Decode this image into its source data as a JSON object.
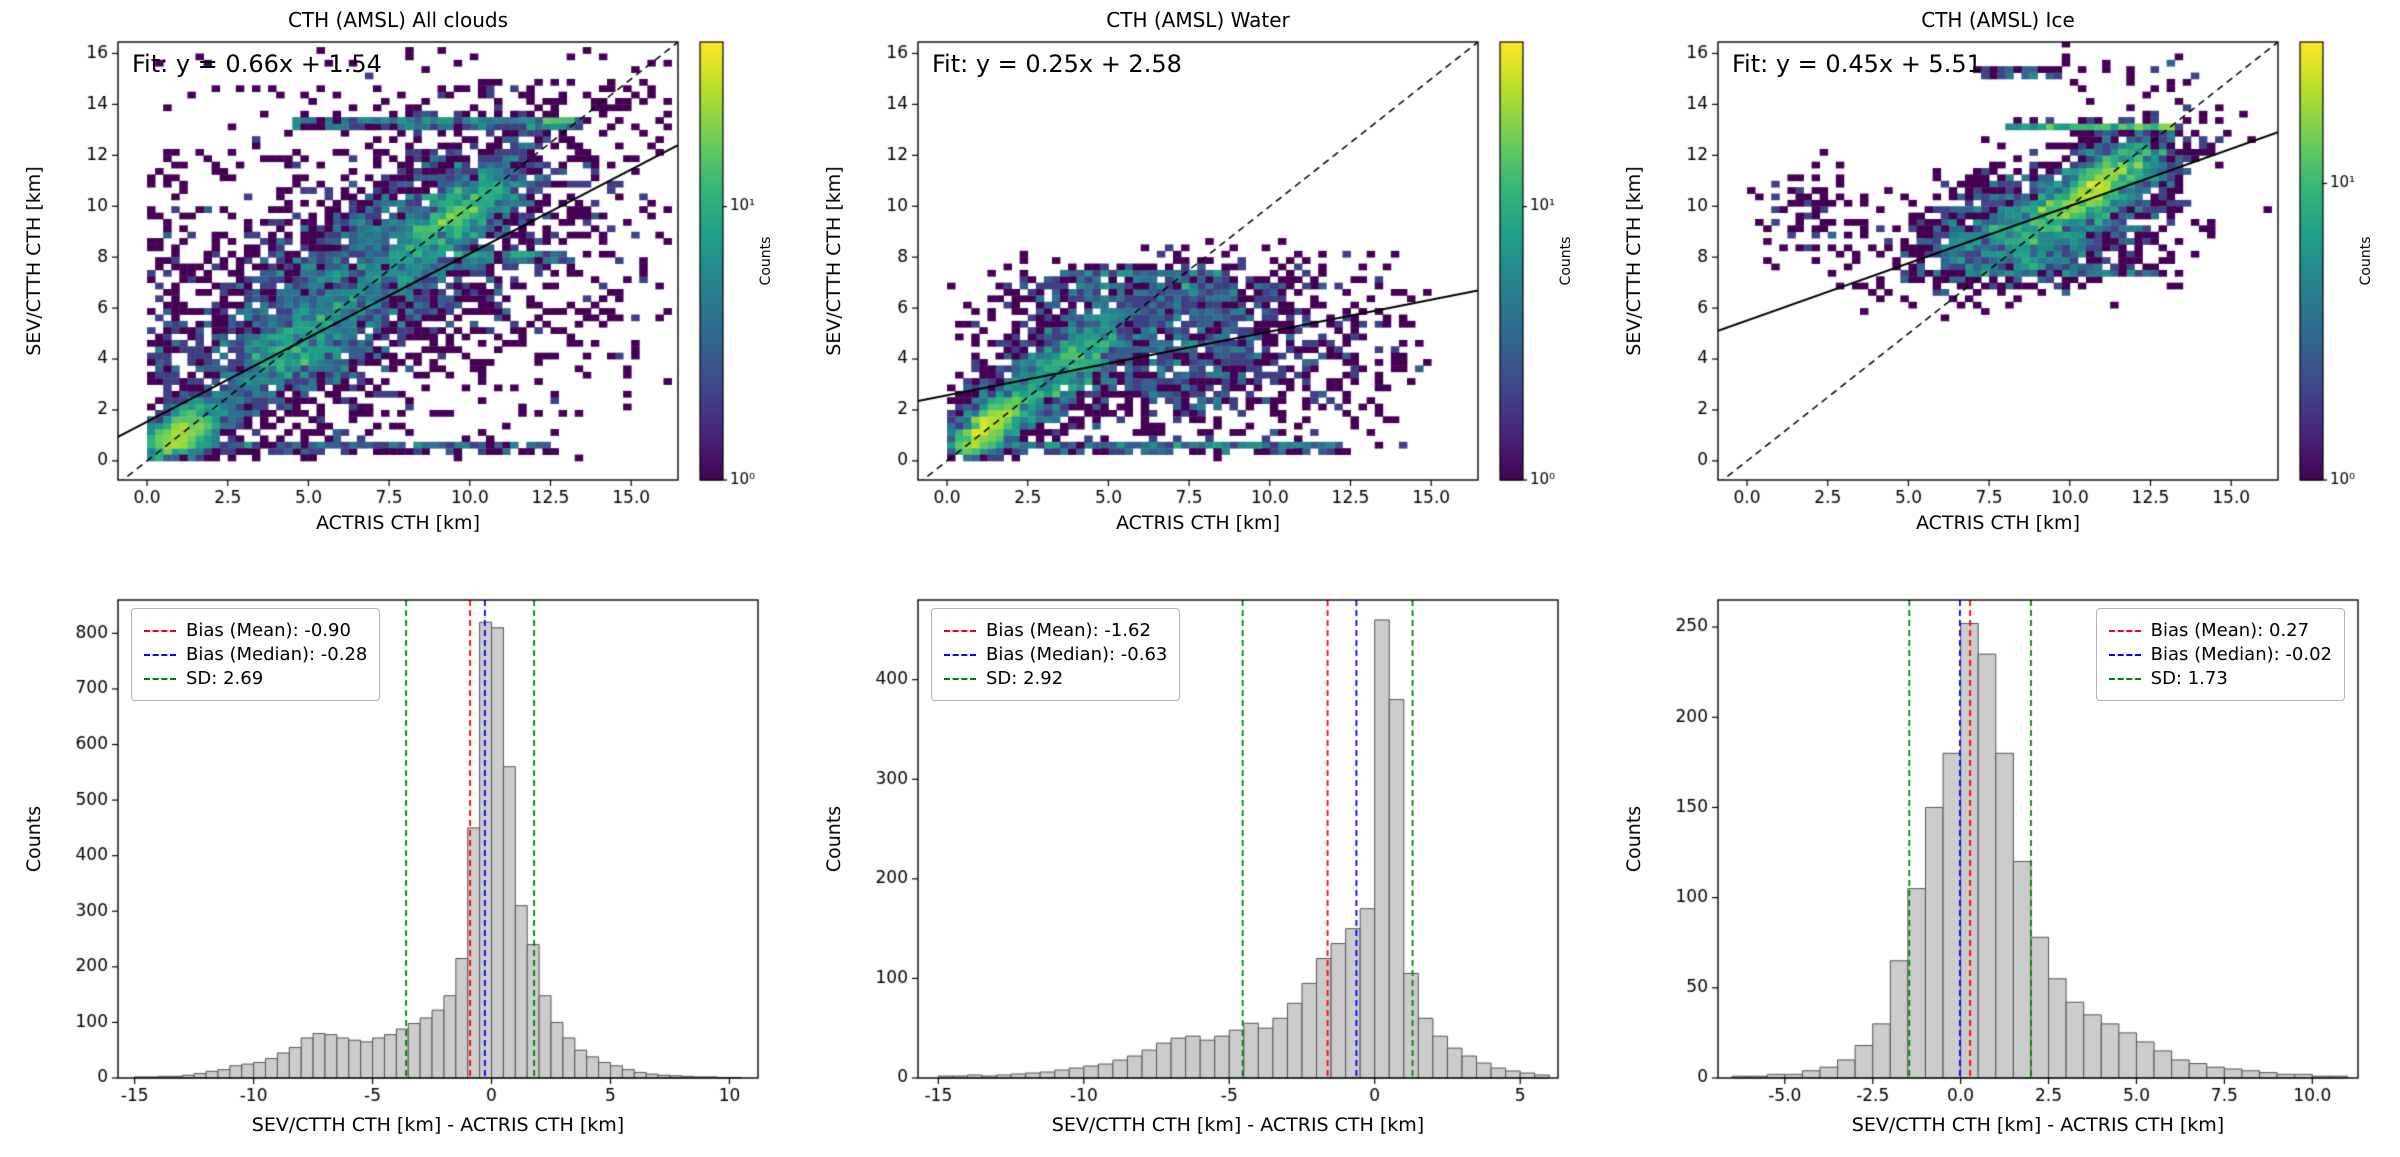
{
  "figure": {
    "background": "#ffffff"
  },
  "colors": {
    "mean_line": "#ff0000",
    "median_line": "#0000ff",
    "sd_line": "#008000",
    "fit_line": "#000000",
    "identity_line": "#000000",
    "hist_fill": "#cccccc",
    "hist_edge": "#555555",
    "axis": "#000000"
  },
  "chart_data": [
    {
      "id": "heatmap-all-clouds",
      "type": "heatmap",
      "title": "CTH (AMSL) All clouds",
      "xlabel": "ACTRIS CTH [km]",
      "ylabel": "SEV/CTTH CTH [km]",
      "xlim": [
        -0.9,
        16.45
      ],
      "ylim": [
        -0.75,
        16.45
      ],
      "xticks": [
        0.0,
        2.5,
        5.0,
        7.5,
        10.0,
        12.5,
        15.0
      ],
      "xtick_decimals": 1,
      "yticks": [
        0,
        2,
        4,
        6,
        8,
        10,
        12,
        14,
        16
      ],
      "ytick_decimals": 0,
      "fit_label": "Fit: y = 0.66x + 1.54",
      "fit_slope": 0.66,
      "fit_intercept": 1.54,
      "identity_line": true,
      "colorbar": {
        "label": "Counts",
        "scale": "log",
        "vmax": 40,
        "ticks": [
          {
            "label": "10¹",
            "value": 10
          },
          {
            "label": "10⁰",
            "value": 1
          }
        ]
      },
      "bin_size": 0.25,
      "seed": 11,
      "clusters": [
        [
          2600,
          6.5,
          6.8,
          3.2,
          3.2,
          0.78
        ],
        [
          900,
          1.0,
          1.05,
          0.7,
          0.7,
          0.6
        ],
        [
          800,
          9.7,
          9.7,
          1.0,
          1.0,
          0.75
        ],
        [
          450,
          4.5,
          4.3,
          1.0,
          1.0,
          0.6
        ],
        [
          900,
          7.0,
          7.5,
          4.3,
          3.8,
          0.1
        ],
        [
          120,
          0.6,
          5.5,
          0.35,
          3.0,
          0
        ],
        [
          80,
          14.2,
          7.0,
          1.2,
          3.5,
          0
        ]
      ],
      "bands": [
        [
          260,
          13.3,
          4.5,
          13.2,
          0.1
        ],
        [
          50,
          13.3,
          12.3,
          13.3,
          0.08
        ],
        [
          200,
          0.55,
          0.3,
          12.6,
          0.09
        ],
        [
          90,
          8.05,
          9.5,
          13.2,
          0.09
        ]
      ],
      "data_bounds": {
        "xmin": 0.05,
        "xmax": 16.3,
        "ymin": 0.05,
        "ymax": 16.3
      }
    },
    {
      "id": "heatmap-water",
      "type": "heatmap",
      "title": "CTH (AMSL) Water",
      "xlabel": "ACTRIS CTH [km]",
      "ylabel": "SEV/CTTH CTH [km]",
      "xlim": [
        -0.9,
        16.45
      ],
      "ylim": [
        -0.75,
        16.45
      ],
      "xticks": [
        0.0,
        2.5,
        5.0,
        7.5,
        10.0,
        12.5,
        15.0
      ],
      "xtick_decimals": 1,
      "yticks": [
        0,
        2,
        4,
        6,
        8,
        10,
        12,
        14,
        16
      ],
      "ytick_decimals": 0,
      "fit_label": "Fit: y = 0.25x + 2.58",
      "fit_slope": 0.25,
      "fit_intercept": 2.58,
      "identity_line": true,
      "colorbar": {
        "label": "Counts",
        "scale": "log",
        "vmax": 40,
        "ticks": [
          {
            "label": "10¹",
            "value": 10
          },
          {
            "label": "10⁰",
            "value": 1
          }
        ]
      },
      "bin_size": 0.25,
      "seed": 22,
      "clusters": [
        [
          900,
          2.0,
          2.1,
          1.3,
          1.3,
          0.75
        ],
        [
          600,
          1.2,
          1.3,
          0.55,
          0.55,
          0.7
        ],
        [
          350,
          4.3,
          4.4,
          0.8,
          0.8,
          0.6
        ],
        [
          1300,
          6.5,
          4.4,
          3.0,
          1.6,
          0.15
        ],
        [
          260,
          6.3,
          6.8,
          2.4,
          0.45,
          0
        ],
        [
          250,
          9.0,
          4.0,
          3.3,
          1.9,
          0
        ],
        [
          35,
          13.3,
          4.5,
          0.9,
          2.2,
          0
        ]
      ],
      "bands": [
        [
          280,
          0.55,
          0.3,
          12.4,
          0.09
        ],
        [
          70,
          7.4,
          3.5,
          8.8,
          0.07
        ]
      ],
      "data_bounds": {
        "xmin": 0.05,
        "xmax": 15.0,
        "ymin": 0.05,
        "ymax": 8.6
      }
    },
    {
      "id": "heatmap-ice",
      "type": "heatmap",
      "title": "CTH (AMSL) Ice",
      "xlabel": "ACTRIS CTH [km]",
      "ylabel": "SEV/CTTH CTH [km]",
      "xlim": [
        -0.9,
        16.45
      ],
      "ylim": [
        -0.75,
        16.45
      ],
      "xticks": [
        0.0,
        2.5,
        5.0,
        7.5,
        10.0,
        12.5,
        15.0
      ],
      "xtick_decimals": 1,
      "yticks": [
        0,
        2,
        4,
        6,
        8,
        10,
        12,
        14,
        16
      ],
      "ytick_decimals": 0,
      "fit_label": "Fit: y = 0.45x + 5.51",
      "fit_slope": 0.45,
      "fit_intercept": 5.51,
      "identity_line": true,
      "colorbar": {
        "label": "Counts",
        "scale": "log",
        "vmax": 30,
        "ticks": [
          {
            "label": "10¹",
            "value": 10
          },
          {
            "label": "10⁰",
            "value": 1
          }
        ]
      },
      "bin_size": 0.25,
      "seed": 33,
      "clusters": [
        [
          1200,
          10.4,
          10.2,
          1.6,
          1.2,
          0.75
        ],
        [
          400,
          10.9,
          10.9,
          0.7,
          0.7,
          0.8
        ],
        [
          650,
          9.0,
          8.6,
          2.2,
          1.0,
          0.3
        ],
        [
          260,
          7.2,
          9.6,
          1.2,
          1.2,
          0.5
        ],
        [
          90,
          2.0,
          9.6,
          1.3,
          1.0,
          0
        ],
        [
          140,
          11.6,
          12.3,
          1.1,
          0.6,
          0.3
        ],
        [
          30,
          12.0,
          15.2,
          1.5,
          0.5,
          0
        ]
      ],
      "bands": [
        [
          130,
          13.15,
          10.4,
          13.35,
          0.06
        ],
        [
          70,
          13.15,
          8.0,
          10.4,
          0.06
        ],
        [
          40,
          15.25,
          7.2,
          9.7,
          0.06
        ],
        [
          90,
          7.45,
          5.8,
          12.8,
          0.07
        ]
      ],
      "data_bounds": {
        "xmin": 0.05,
        "xmax": 16.3,
        "ymin": 5.5,
        "ymax": 16.3
      }
    },
    {
      "id": "hist-all-clouds",
      "type": "histogram",
      "xlabel": "SEV/CTTH CTH [km] - ACTRIS CTH [km]",
      "ylabel": "Counts",
      "xlim": [
        -15.7,
        11.2
      ],
      "ylim": [
        0,
        860
      ],
      "xticks": [
        -15,
        -10,
        -5,
        0,
        5,
        10
      ],
      "xtick_decimals": 0,
      "yticks": [
        0,
        100,
        200,
        300,
        400,
        500,
        600,
        700,
        800
      ],
      "ytick_decimals": 0,
      "bin_start": -15.0,
      "bin_width": 0.5,
      "counts": [
        2,
        2,
        3,
        3,
        5,
        8,
        12,
        15,
        22,
        25,
        28,
        35,
        45,
        55,
        72,
        80,
        78,
        72,
        68,
        65,
        72,
        78,
        88,
        98,
        108,
        122,
        148,
        215,
        450,
        820,
        810,
        560,
        310,
        240,
        148,
        100,
        72,
        50,
        38,
        28,
        22,
        15,
        10,
        7,
        5,
        4,
        3,
        2,
        2,
        1,
        1
      ],
      "stats": {
        "mean": -0.9,
        "median": -0.28,
        "sd": 2.69
      },
      "legend": {
        "position": "upper-left",
        "entries": [
          {
            "label": "Bias (Mean): -0.90",
            "color": "#ff0000"
          },
          {
            "label": "Bias (Median): -0.28",
            "color": "#0000ff"
          },
          {
            "label": "SD: 2.69",
            "color": "#008000"
          }
        ]
      }
    },
    {
      "id": "hist-water",
      "type": "histogram",
      "xlabel": "SEV/CTTH CTH [km] - ACTRIS CTH [km]",
      "ylabel": "Counts",
      "xlim": [
        -15.7,
        6.3
      ],
      "ylim": [
        0,
        480
      ],
      "xticks": [
        -15,
        -10,
        -5,
        0,
        5
      ],
      "xtick_decimals": 0,
      "yticks": [
        0,
        100,
        200,
        300,
        400
      ],
      "ytick_decimals": 0,
      "bin_start": -15.0,
      "bin_width": 0.5,
      "counts": [
        2,
        2,
        3,
        2,
        3,
        4,
        5,
        6,
        8,
        10,
        12,
        14,
        18,
        22,
        28,
        35,
        40,
        42,
        38,
        42,
        48,
        55,
        50,
        60,
        75,
        95,
        120,
        135,
        150,
        170,
        460,
        380,
        105,
        60,
        42,
        30,
        22,
        15,
        10,
        7,
        5,
        3
      ],
      "stats": {
        "mean": -1.62,
        "median": -0.63,
        "sd": 2.92
      },
      "legend": {
        "position": "upper-left",
        "entries": [
          {
            "label": "Bias (Mean): -1.62",
            "color": "#ff0000"
          },
          {
            "label": "Bias (Median): -0.63",
            "color": "#0000ff"
          },
          {
            "label": "SD: 2.92",
            "color": "#008000"
          }
        ]
      }
    },
    {
      "id": "hist-ice",
      "type": "histogram",
      "xlabel": "SEV/CTTH CTH [km] - ACTRIS CTH [km]",
      "ylabel": "Counts",
      "xlim": [
        -6.9,
        11.3
      ],
      "ylim": [
        0,
        265
      ],
      "xticks": [
        -5.0,
        -2.5,
        0.0,
        2.5,
        5.0,
        7.5,
        10.0
      ],
      "xtick_decimals": 1,
      "yticks": [
        0,
        50,
        100,
        150,
        200,
        250
      ],
      "ytick_decimals": 0,
      "bin_start": -6.5,
      "bin_width": 0.5,
      "counts": [
        1,
        1,
        2,
        2,
        4,
        6,
        10,
        18,
        30,
        65,
        105,
        150,
        180,
        252,
        235,
        180,
        120,
        78,
        55,
        42,
        35,
        30,
        25,
        20,
        15,
        10,
        8,
        6,
        5,
        4,
        3,
        2,
        2,
        1,
        1
      ],
      "stats": {
        "mean": 0.27,
        "median": -0.02,
        "sd": 1.73
      },
      "legend": {
        "position": "upper-right",
        "entries": [
          {
            "label": "Bias (Mean): 0.27",
            "color": "#ff0000"
          },
          {
            "label": "Bias (Median): -0.02",
            "color": "#0000ff"
          },
          {
            "label": "SD: 1.73",
            "color": "#008000"
          }
        ]
      }
    }
  ]
}
